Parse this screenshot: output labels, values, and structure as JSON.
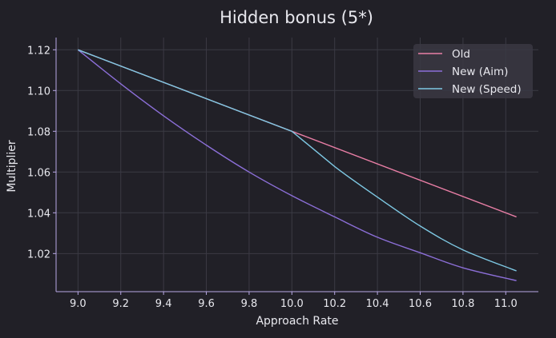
{
  "chart_data": {
    "type": "line",
    "title": "Hidden bonus (5*)",
    "xlabel": "Approach Rate",
    "ylabel": "Multiplier",
    "xlim": [
      8.8975,
      11.1525
    ],
    "ylim": [
      1.0013,
      1.126
    ],
    "xticks": [
      "9.0",
      "9.2",
      "9.4",
      "9.6",
      "9.8",
      "10.0",
      "10.2",
      "10.4",
      "10.6",
      "10.8",
      "11.0"
    ],
    "yticks": [
      "1.02",
      "1.04",
      "1.06",
      "1.08",
      "1.10",
      "1.12"
    ],
    "grid": true,
    "legend_placement": "top-right",
    "series": [
      {
        "name": "Old",
        "color": "#e87ea5",
        "x": [
          9.0,
          10.0,
          11.05
        ],
        "y": [
          1.12,
          1.08,
          1.038
        ]
      },
      {
        "name": "New (Aim)",
        "color": "#8c6fd8",
        "x": [
          9.0,
          9.2,
          9.4,
          9.6,
          9.8,
          10.0,
          10.2,
          10.4,
          10.6,
          10.8,
          11.05
        ],
        "y": [
          1.12,
          1.1033,
          1.0876,
          1.0732,
          1.06,
          1.0484,
          1.038,
          1.028,
          1.0204,
          1.013,
          1.0067
        ]
      },
      {
        "name": "New (Speed)",
        "color": "#7ec8e3",
        "x": [
          9.0,
          10.0,
          10.2,
          10.4,
          10.6,
          10.8,
          11.05
        ],
        "y": [
          1.12,
          1.08,
          1.0627,
          1.0477,
          1.0335,
          1.0218,
          1.0115
        ]
      }
    ]
  }
}
